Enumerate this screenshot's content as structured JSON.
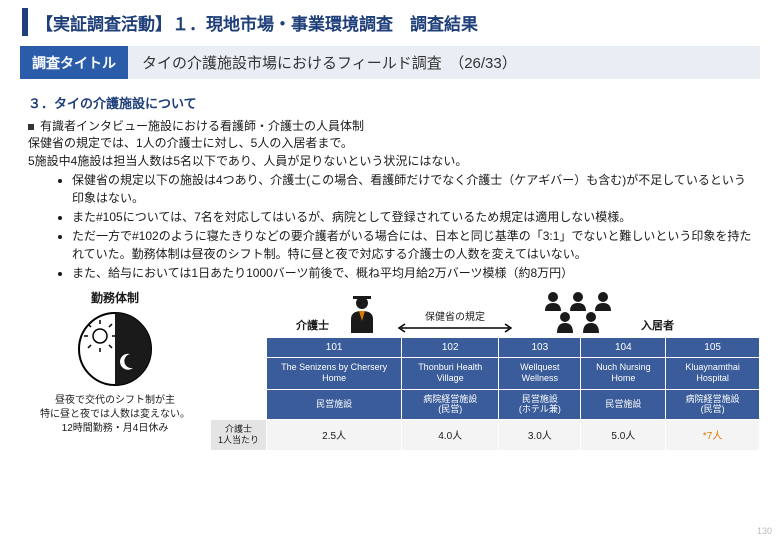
{
  "header": {
    "title": "【実証調査活動】１．現地市場・事業環境調査　調査結果"
  },
  "subtitle": {
    "label": "調査タイトル",
    "body": "タイの介護施設市場におけるフィールド調査　（26/33）"
  },
  "section": {
    "heading": "３．タイの介護施設について",
    "lead": "有識者インタビュー施設における看護師・介護士の人員体制",
    "para1": "保健省の規定では、1人の介護士に対し、5人の入居者まで。",
    "para2": "5施設中4施設は担当人数は5名以下であり、人員が足りないという状況にはない。",
    "bullets": [
      "保健省の規定以下の施設は4つあり、介護士(この場合、看護師だけでなく介護士（ケアギバー）も含む)が不足しているという印象はない。",
      "また#105については、7名を対応してはいるが、病院として登録されているため規定は適用しない模様。",
      "ただ一方で#102のように寝たきりなどの要介護者がいる場合には、日本と同じ基準の「3:1」でないと難しいという印象を持たれていた。勤務体制は昼夜のシフト制。特に昼と夜で対応する介護士の人数を変えてはいない。",
      "また、給与においては1日あたり1000バーツ前後で、概ね平均月給2万バーツ模様（約8万円）"
    ]
  },
  "shift": {
    "title": "勤務体制",
    "caption1": "昼夜で交代のシフト制が主",
    "caption2": "特に昼と夜では人数は変えない。",
    "caption3": "12時間勤務・月4日休み"
  },
  "roles": {
    "caregiver": "介護士",
    "regulation": "保健省の規定",
    "resident": "入居者"
  },
  "facilities": {
    "row_label": "介護士\n1人当たり",
    "columns": [
      {
        "code": "101",
        "name": "The Senizens by Chersery Home",
        "type": "民営施設",
        "ratio": "2.5人"
      },
      {
        "code": "102",
        "name": "Thonburi Health Village",
        "type": "病院経営施設\n(民営)",
        "ratio": "4.0人"
      },
      {
        "code": "103",
        "name": "Wellquest Wellness",
        "type": "民営施設\n(ホテル兼)",
        "ratio": "3.0人"
      },
      {
        "code": "104",
        "name": "Nuch Nursing Home",
        "type": "民営施設",
        "ratio": "5.0人"
      },
      {
        "code": "105",
        "name": "Kluaynamthai Hospital",
        "type": "病院経営施設\n(民営)",
        "ratio": "*7人"
      }
    ]
  },
  "page_number": "130",
  "colors": {
    "primary": "#1f3f7a",
    "header_bg": "#3a5c9a",
    "subtitle_label_bg": "#2a5caa",
    "subtitle_body_bg": "#e9eef5",
    "row_head_bg": "#e4e4e4",
    "cell_bg": "#f4f4f4",
    "accent_orange": "#d97b00"
  }
}
